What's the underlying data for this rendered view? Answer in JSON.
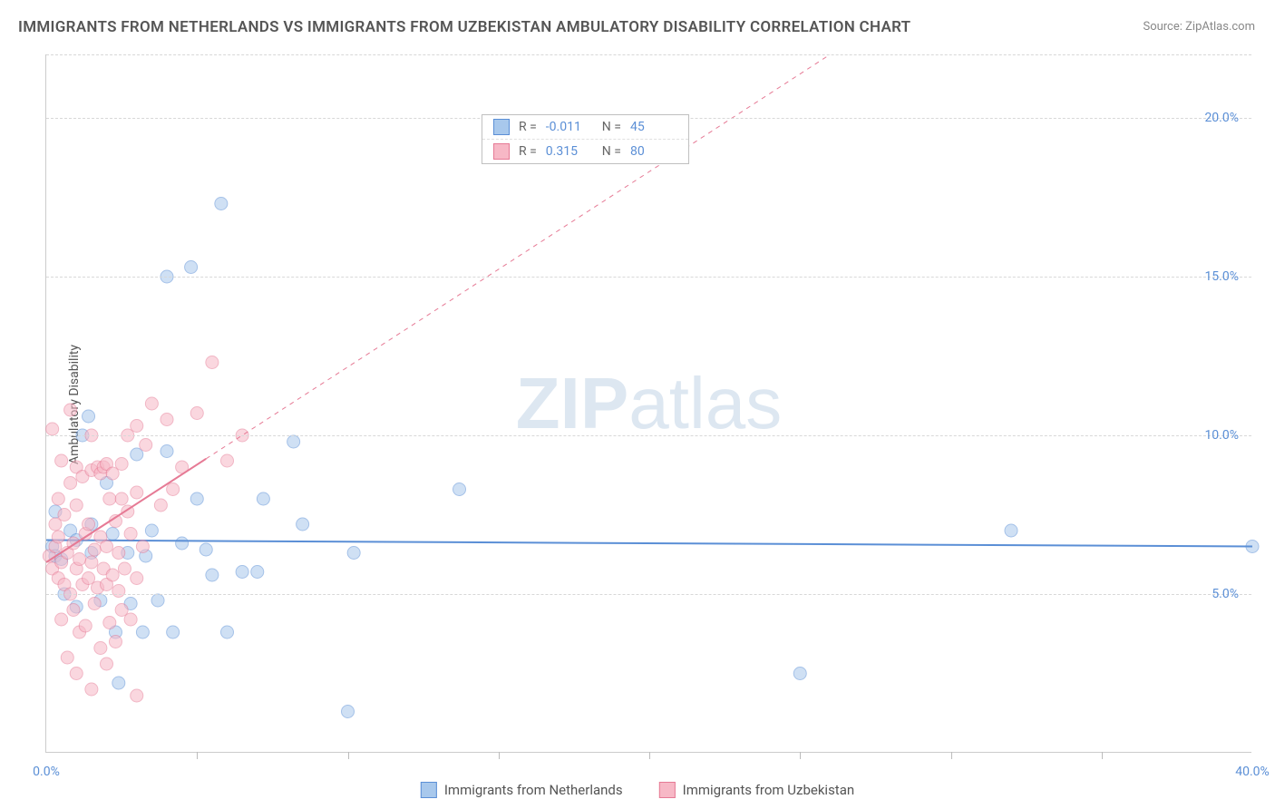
{
  "title": "IMMIGRANTS FROM NETHERLANDS VS IMMIGRANTS FROM UZBEKISTAN AMBULATORY DISABILITY CORRELATION CHART",
  "source": "Source: ZipAtlas.com",
  "watermark_a": "ZIP",
  "watermark_b": "atlas",
  "y_axis_label": "Ambulatory Disability",
  "chart": {
    "type": "scatter",
    "background_color": "#ffffff",
    "grid_color": "#d8d8d8",
    "xlim": [
      0,
      40
    ],
    "ylim": [
      0,
      22
    ],
    "x_tick_labels": [
      {
        "v": 0,
        "t": "0.0%"
      },
      {
        "v": 40,
        "t": "40.0%"
      }
    ],
    "x_minor_ticks": [
      5,
      10,
      15,
      20,
      25,
      30,
      35
    ],
    "y_tick_labels": [
      {
        "v": 5,
        "t": "5.0%"
      },
      {
        "v": 10,
        "t": "10.0%"
      },
      {
        "v": 15,
        "t": "15.0%"
      },
      {
        "v": 20,
        "t": "20.0%"
      }
    ],
    "y_gridlines": [
      5,
      10,
      15,
      20,
      22
    ],
    "title_fontsize": 17,
    "label_fontsize": 14,
    "tick_fontsize": 14,
    "tick_color": "#5b8fd6",
    "marker_radius": 7,
    "marker_opacity": 0.55,
    "series": [
      {
        "name": "Immigrants from Netherlands",
        "color_fill": "#a8c8ec",
        "color_stroke": "#5b8fd6",
        "R": "-0.011",
        "N": "45",
        "points": [
          [
            0.2,
            6.5
          ],
          [
            0.3,
            6.2
          ],
          [
            0.3,
            7.6
          ],
          [
            0.5,
            6.1
          ],
          [
            0.6,
            5.0
          ],
          [
            0.8,
            7.0
          ],
          [
            1.0,
            4.6
          ],
          [
            1.0,
            6.7
          ],
          [
            1.2,
            10.0
          ],
          [
            1.4,
            10.6
          ],
          [
            1.5,
            6.3
          ],
          [
            1.5,
            7.2
          ],
          [
            1.8,
            4.8
          ],
          [
            2.0,
            8.5
          ],
          [
            2.2,
            6.9
          ],
          [
            2.3,
            3.8
          ],
          [
            2.4,
            2.2
          ],
          [
            2.7,
            6.3
          ],
          [
            2.8,
            4.7
          ],
          [
            3.0,
            9.4
          ],
          [
            3.2,
            3.8
          ],
          [
            3.3,
            6.2
          ],
          [
            3.5,
            7.0
          ],
          [
            3.7,
            4.8
          ],
          [
            4.0,
            9.5
          ],
          [
            4.0,
            15.0
          ],
          [
            4.2,
            3.8
          ],
          [
            4.5,
            6.6
          ],
          [
            4.8,
            15.3
          ],
          [
            5.0,
            8.0
          ],
          [
            5.3,
            6.4
          ],
          [
            5.5,
            5.6
          ],
          [
            5.8,
            17.3
          ],
          [
            6.0,
            3.8
          ],
          [
            6.5,
            5.7
          ],
          [
            7.0,
            5.7
          ],
          [
            7.2,
            8.0
          ],
          [
            8.2,
            9.8
          ],
          [
            8.5,
            7.2
          ],
          [
            10.0,
            1.3
          ],
          [
            10.2,
            6.3
          ],
          [
            13.7,
            8.3
          ],
          [
            25.0,
            2.5
          ],
          [
            32.0,
            7.0
          ],
          [
            40.0,
            6.5
          ]
        ],
        "trend": {
          "x1": 0,
          "y1": 6.7,
          "x2": 40,
          "y2": 6.5,
          "solid_until_x": 40,
          "stroke_width": 2
        }
      },
      {
        "name": "Immigrants from Uzbekistan",
        "color_fill": "#f7b8c6",
        "color_stroke": "#e67a95",
        "R": "0.315",
        "N": "80",
        "points": [
          [
            0.1,
            6.2
          ],
          [
            0.2,
            5.8
          ],
          [
            0.2,
            10.2
          ],
          [
            0.3,
            6.5
          ],
          [
            0.3,
            7.2
          ],
          [
            0.4,
            5.5
          ],
          [
            0.4,
            6.8
          ],
          [
            0.4,
            8.0
          ],
          [
            0.5,
            4.2
          ],
          [
            0.5,
            6.0
          ],
          [
            0.5,
            9.2
          ],
          [
            0.6,
            5.3
          ],
          [
            0.6,
            7.5
          ],
          [
            0.7,
            3.0
          ],
          [
            0.7,
            6.3
          ],
          [
            0.8,
            5.0
          ],
          [
            0.8,
            8.5
          ],
          [
            0.8,
            10.8
          ],
          [
            0.9,
            4.5
          ],
          [
            0.9,
            6.6
          ],
          [
            1.0,
            2.5
          ],
          [
            1.0,
            5.8
          ],
          [
            1.0,
            7.8
          ],
          [
            1.0,
            9.0
          ],
          [
            1.1,
            3.8
          ],
          [
            1.1,
            6.1
          ],
          [
            1.2,
            5.3
          ],
          [
            1.2,
            8.7
          ],
          [
            1.3,
            4.0
          ],
          [
            1.3,
            6.9
          ],
          [
            1.4,
            5.5
          ],
          [
            1.4,
            7.2
          ],
          [
            1.5,
            2.0
          ],
          [
            1.5,
            6.0
          ],
          [
            1.5,
            8.9
          ],
          [
            1.5,
            10.0
          ],
          [
            1.6,
            4.7
          ],
          [
            1.6,
            6.4
          ],
          [
            1.7,
            5.2
          ],
          [
            1.7,
            9.0
          ],
          [
            1.8,
            3.3
          ],
          [
            1.8,
            6.8
          ],
          [
            1.8,
            8.8
          ],
          [
            1.9,
            5.8
          ],
          [
            1.9,
            9.0
          ],
          [
            2.0,
            2.8
          ],
          [
            2.0,
            5.3
          ],
          [
            2.0,
            6.5
          ],
          [
            2.0,
            9.1
          ],
          [
            2.1,
            4.1
          ],
          [
            2.1,
            8.0
          ],
          [
            2.2,
            5.6
          ],
          [
            2.2,
            8.8
          ],
          [
            2.3,
            3.5
          ],
          [
            2.3,
            7.3
          ],
          [
            2.4,
            5.1
          ],
          [
            2.4,
            6.3
          ],
          [
            2.5,
            4.5
          ],
          [
            2.5,
            8.0
          ],
          [
            2.5,
            9.1
          ],
          [
            2.6,
            5.8
          ],
          [
            2.7,
            7.6
          ],
          [
            2.7,
            10.0
          ],
          [
            2.8,
            4.2
          ],
          [
            2.8,
            6.9
          ],
          [
            3.0,
            1.8
          ],
          [
            3.0,
            5.5
          ],
          [
            3.0,
            8.2
          ],
          [
            3.0,
            10.3
          ],
          [
            3.2,
            6.5
          ],
          [
            3.3,
            9.7
          ],
          [
            3.5,
            11.0
          ],
          [
            3.8,
            7.8
          ],
          [
            4.0,
            10.5
          ],
          [
            4.2,
            8.3
          ],
          [
            4.5,
            9.0
          ],
          [
            5.0,
            10.7
          ],
          [
            5.5,
            12.3
          ],
          [
            6.0,
            9.2
          ],
          [
            6.5,
            10.0
          ]
        ],
        "trend": {
          "x1": 0,
          "y1": 6.0,
          "x2": 26,
          "y2": 22,
          "solid_until_x": 5.3,
          "stroke_width": 2
        }
      }
    ]
  },
  "legend_bottom": [
    {
      "label": "Immigrants from Netherlands",
      "fill": "#a8c8ec",
      "stroke": "#5b8fd6"
    },
    {
      "label": "Immigrants from Uzbekistan",
      "fill": "#f7b8c6",
      "stroke": "#e67a95"
    }
  ]
}
